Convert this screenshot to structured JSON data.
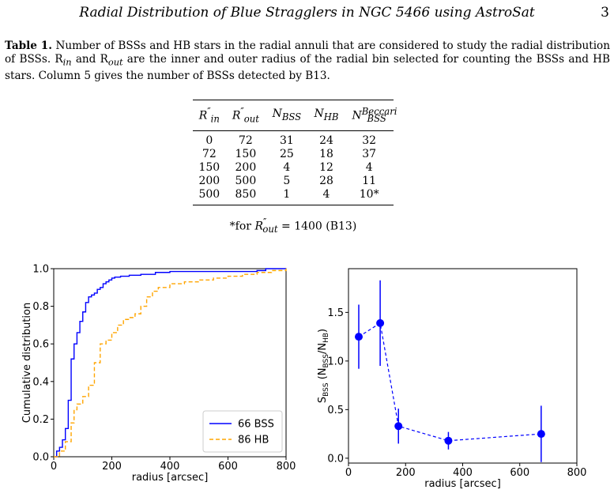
{
  "header": {
    "title": "Radial Distribution of Blue Stragglers in NGC 5466 using AstroSat",
    "page": "3"
  },
  "caption": {
    "label": "Table 1.",
    "text1": " Number of BSSs and HB stars in the radial annuli that are considered to study the radial distribution of BSSs. R",
    "sub_in": "in",
    "and": " and R",
    "sub_out": "out",
    "text2": " are the inner and outer radius of the radial bin selected for counting the BSSs and HB stars. Column 5 gives the number of BSSs detected by B13."
  },
  "table": {
    "headers": [
      {
        "base": "R",
        "sup": "″",
        "sub": "in"
      },
      {
        "base": "R",
        "sup": "″",
        "sub": "out"
      },
      {
        "base": "N",
        "sup": "",
        "sub": "BSS"
      },
      {
        "base": "N",
        "sup": "",
        "sub": "HB"
      },
      {
        "base": "N",
        "sup": "Beccari",
        "sub": "BSS"
      }
    ],
    "rows": [
      [
        "0",
        "72",
        "31",
        "24",
        "32"
      ],
      [
        "72",
        "150",
        "25",
        "18",
        "37"
      ],
      [
        "150",
        "200",
        "4",
        "12",
        "4"
      ],
      [
        "200",
        "500",
        "5",
        "28",
        "11"
      ],
      [
        "500",
        "850",
        "1",
        "4",
        "10*"
      ]
    ],
    "footnote": {
      "prefix": "*for ",
      "base": "R",
      "sup": "″",
      "sub": "out",
      "suffix": " = 1400 (B13)"
    }
  },
  "colors": {
    "bss": "#0000ff",
    "hb": "#ffa500"
  },
  "chart_data": [
    {
      "type": "line",
      "xlabel": "radius [arcsec]",
      "ylabel": "Cumulative distribution",
      "xlim": [
        0,
        800
      ],
      "ylim": [
        0,
        1.0
      ],
      "xticks": [
        "0",
        "200",
        "400",
        "600",
        "800"
      ],
      "yticks": [
        "0.0",
        "0.2",
        "0.4",
        "0.6",
        "0.8",
        "1.0"
      ],
      "legend_position": "lower-right",
      "series": [
        {
          "name": "66 BSS",
          "style": "solid",
          "color": "#0000ff",
          "x": [
            0,
            10,
            20,
            30,
            40,
            50,
            60,
            70,
            80,
            90,
            100,
            110,
            120,
            130,
            140,
            150,
            160,
            170,
            180,
            190,
            200,
            210,
            230,
            260,
            300,
            350,
            400,
            500,
            600,
            700,
            730,
            800
          ],
          "y": [
            0,
            0.03,
            0.05,
            0.09,
            0.15,
            0.3,
            0.52,
            0.6,
            0.66,
            0.72,
            0.77,
            0.82,
            0.85,
            0.86,
            0.87,
            0.89,
            0.9,
            0.92,
            0.93,
            0.94,
            0.95,
            0.955,
            0.96,
            0.965,
            0.97,
            0.98,
            0.985,
            0.985,
            0.985,
            0.99,
            1.0,
            1.0
          ]
        },
        {
          "name": "86 HB",
          "style": "dashed",
          "color": "#ffa500",
          "x": [
            0,
            20,
            40,
            60,
            70,
            80,
            100,
            120,
            140,
            160,
            180,
            200,
            220,
            240,
            260,
            280,
            300,
            320,
            340,
            360,
            380,
            400,
            450,
            500,
            550,
            600,
            650,
            700,
            750,
            800
          ],
          "y": [
            0,
            0.03,
            0.08,
            0.18,
            0.25,
            0.28,
            0.32,
            0.38,
            0.5,
            0.6,
            0.62,
            0.66,
            0.7,
            0.73,
            0.74,
            0.76,
            0.8,
            0.85,
            0.88,
            0.9,
            0.9,
            0.92,
            0.93,
            0.94,
            0.95,
            0.96,
            0.97,
            0.98,
            0.99,
            1.0
          ]
        }
      ]
    },
    {
      "type": "scatter",
      "xlabel": "radius [arcsec]",
      "ylabel": "S_BSS (N_BSS/N_HB)",
      "xlim": [
        0,
        800
      ],
      "ylim": [
        -0.05,
        1.95
      ],
      "xticks": [
        "0",
        "200",
        "400",
        "600",
        "800"
      ],
      "yticks": [
        "0.0",
        "0.5",
        "1.0",
        "1.5"
      ],
      "series": [
        {
          "color": "#0000ff",
          "style": "dashed",
          "x": [
            36,
            111,
            175,
            350,
            675
          ],
          "y": [
            1.25,
            1.39,
            0.33,
            0.18,
            0.25
          ],
          "err": [
            0.33,
            0.44,
            0.18,
            0.09,
            0.29
          ]
        }
      ]
    }
  ]
}
